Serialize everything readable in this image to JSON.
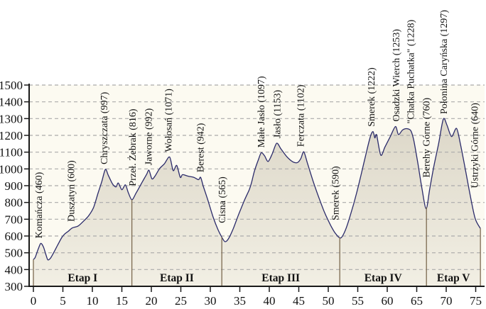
{
  "chart_data": {
    "type": "area",
    "x_ticks": [
      0,
      5,
      10,
      15,
      20,
      25,
      30,
      35,
      40,
      45,
      50,
      55,
      60,
      65,
      70,
      75
    ],
    "y_ticks": [
      300,
      400,
      500,
      600,
      700,
      800,
      900,
      1000,
      1100,
      1200,
      1300,
      1400,
      1500
    ],
    "xlim": [
      0,
      75.8
    ],
    "ylim": [
      300,
      1500
    ],
    "grid": "horizontal-dashed",
    "legend": "none",
    "colors": {
      "plot_bg": "#fcfaf1",
      "area_top": "#dcd7c8",
      "area_bottom": "#f2efe4",
      "line": "#2b2b6a",
      "grid": "#aaaaaa",
      "axis": "#1a1a1a",
      "stage_text": "#8a795c",
      "divider": "#7c6a50",
      "label_text": "#111111"
    },
    "profile": [
      [
        0,
        460
      ],
      [
        0.3,
        472
      ],
      [
        0.8,
        520
      ],
      [
        1.25,
        556
      ],
      [
        1.7,
        535
      ],
      [
        2.1,
        492
      ],
      [
        2.45,
        458
      ],
      [
        2.9,
        468
      ],
      [
        3.5,
        505
      ],
      [
        4.1,
        545
      ],
      [
        4.8,
        590
      ],
      [
        5.3,
        612
      ],
      [
        5.9,
        628
      ],
      [
        6.6,
        648
      ],
      [
        7.6,
        660
      ],
      [
        8.6,
        692
      ],
      [
        9.4,
        722
      ],
      [
        10.2,
        770
      ],
      [
        11,
        860
      ],
      [
        11.6,
        925
      ],
      [
        12.2,
        997
      ],
      [
        12.7,
        962
      ],
      [
        13.4,
        912
      ],
      [
        14,
        893
      ],
      [
        14.4,
        916
      ],
      [
        15,
        876
      ],
      [
        15.6,
        905
      ],
      [
        16.1,
        858
      ],
      [
        16.7,
        816
      ],
      [
        17.4,
        855
      ],
      [
        18.4,
        918
      ],
      [
        19.2,
        968
      ],
      [
        19.6,
        992
      ],
      [
        20.1,
        941
      ],
      [
        20.6,
        956
      ],
      [
        21.4,
        1002
      ],
      [
        22.2,
        1030
      ],
      [
        23.1,
        1071
      ],
      [
        23.7,
        990
      ],
      [
        24.3,
        1021
      ],
      [
        24.9,
        950
      ],
      [
        25.3,
        966
      ],
      [
        26.2,
        957
      ],
      [
        27.2,
        950
      ],
      [
        28,
        936
      ],
      [
        28.35,
        950
      ],
      [
        28.8,
        898
      ],
      [
        29.6,
        812
      ],
      [
        30.5,
        710
      ],
      [
        31.3,
        638
      ],
      [
        32,
        590
      ],
      [
        32.5,
        566
      ],
      [
        33.1,
        585
      ],
      [
        33.9,
        645
      ],
      [
        34.8,
        728
      ],
      [
        35.7,
        806
      ],
      [
        36.6,
        876
      ],
      [
        37,
        920
      ],
      [
        37.5,
        990
      ],
      [
        38.2,
        1060
      ],
      [
        38.65,
        1097
      ],
      [
        39.2,
        1078
      ],
      [
        39.8,
        1044
      ],
      [
        40.5,
        1090
      ],
      [
        41.25,
        1153
      ],
      [
        42,
        1118
      ],
      [
        43,
        1072
      ],
      [
        44,
        1042
      ],
      [
        44.8,
        1038
      ],
      [
        45.35,
        1062
      ],
      [
        45.85,
        1102
      ],
      [
        46.5,
        1030
      ],
      [
        47.4,
        930
      ],
      [
        48.4,
        830
      ],
      [
        49.4,
        738
      ],
      [
        50.4,
        664
      ],
      [
        51.2,
        616
      ],
      [
        52.1,
        588
      ],
      [
        52.9,
        635
      ],
      [
        53.8,
        730
      ],
      [
        54.8,
        855
      ],
      [
        55.7,
        985
      ],
      [
        56.5,
        1105
      ],
      [
        57.2,
        1200
      ],
      [
        57.6,
        1222
      ],
      [
        57.9,
        1185
      ],
      [
        58.2,
        1202
      ],
      [
        58.9,
        1082
      ],
      [
        59.6,
        1130
      ],
      [
        60.5,
        1192
      ],
      [
        61.4,
        1253
      ],
      [
        61.9,
        1205
      ],
      [
        62.6,
        1232
      ],
      [
        63.3,
        1240
      ],
      [
        64,
        1228
      ],
      [
        64.5,
        1170
      ],
      [
        65.2,
        1032
      ],
      [
        65.9,
        880
      ],
      [
        66.6,
        762
      ],
      [
        67.2,
        880
      ],
      [
        67.9,
        1015
      ],
      [
        68.7,
        1148
      ],
      [
        69.5,
        1297
      ],
      [
        70.1,
        1264
      ],
      [
        70.9,
        1193
      ],
      [
        71.75,
        1242
      ],
      [
        72.4,
        1150
      ],
      [
        73.2,
        1005
      ],
      [
        74,
        855
      ],
      [
        74.9,
        705
      ],
      [
        75.8,
        645
      ]
    ],
    "peak_labels": [
      {
        "text": "Komańcza (460)",
        "name": "Komańcza",
        "elevation": 460,
        "km": 0.9
      },
      {
        "text": "Duszatyn (600)",
        "name": "Duszatyn",
        "elevation": 600,
        "km": 6.4
      },
      {
        "text": "Chryszczata (997)",
        "name": "Chryszczata",
        "elevation": 997,
        "km": 12.0
      },
      {
        "text": "Przeł. Żebrak (816)",
        "name": "Przeł. Żebrak",
        "elevation": 816,
        "km": 16.8
      },
      {
        "text": "Jaworne (992)",
        "name": "Jaworne",
        "elevation": 992,
        "km": 19.5
      },
      {
        "text": "Wołosań (1071)",
        "name": "Wołosań",
        "elevation": 1071,
        "km": 22.9
      },
      {
        "text": "Berest (942)",
        "name": "Berest",
        "elevation": 942,
        "km": 28.3
      },
      {
        "text": "Cisna (565)",
        "name": "Cisna",
        "elevation": 565,
        "km": 32.0
      },
      {
        "text": "Małe Jasło (1097)",
        "name": "Małe Jasło",
        "elevation": 1097,
        "km": 38.6
      },
      {
        "text": "Jasło (1153)",
        "name": "Jasło",
        "elevation": 1153,
        "km": 41.3
      },
      {
        "text": "Ferczata (1102)",
        "name": "Ferczata",
        "elevation": 1102,
        "km": 45.3
      },
      {
        "text": "Smerek (590)",
        "name": "Smerek",
        "elevation": 590,
        "km": 51.2
      },
      {
        "text": "Smerek (1222)",
        "name": "Smerek",
        "elevation": 1222,
        "km": 57.3
      },
      {
        "text": "Osadzki Wierch (1253)",
        "name": "Osadzki Wierch",
        "elevation": 1253,
        "km": 61.5
      },
      {
        "text": "\"Chatka Puchatka\" (1228)",
        "name": "\"Chatka Puchatka\"",
        "elevation": 1228,
        "km": 64.0
      },
      {
        "text": "Berehy Górne (760)",
        "name": "Berehy Górne",
        "elevation": 760,
        "km": 66.6
      },
      {
        "text": "Połonina Caryńska (1297)",
        "name": "Połonina Caryńska",
        "elevation": 1297,
        "km": 69.6
      },
      {
        "text": "Ustrzyki Górne (640)",
        "name": "Ustrzyki Górne",
        "elevation": 640,
        "km": 74.8
      }
    ],
    "stages": [
      {
        "label": "Etap I",
        "from_km": 0,
        "to_km": 16.7
      },
      {
        "label": "Etap II",
        "from_km": 16.7,
        "to_km": 31.95
      },
      {
        "label": "Etap III",
        "from_km": 31.95,
        "to_km": 51.95
      },
      {
        "label": "Etap IV",
        "from_km": 51.95,
        "to_km": 66.65
      },
      {
        "label": "Etap V",
        "from_km": 66.65,
        "to_km": 75.8
      }
    ]
  }
}
